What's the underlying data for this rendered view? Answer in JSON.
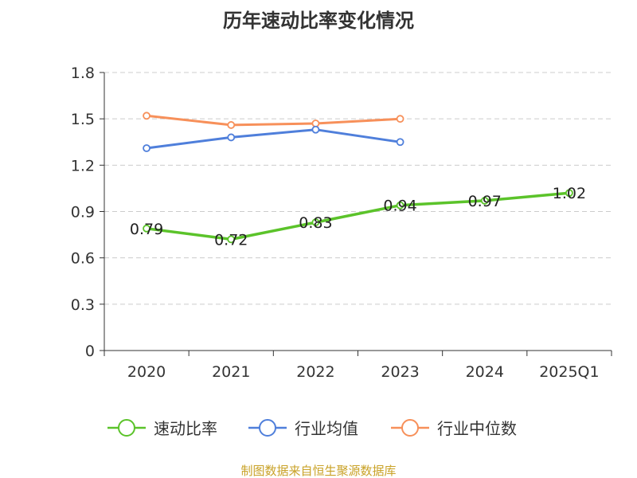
{
  "chart_data": {
    "type": "line",
    "title": "历年速动比率变化情况",
    "xlabel": "",
    "ylabel": "",
    "categories": [
      "2020",
      "2021",
      "2022",
      "2023",
      "2024",
      "2025Q1"
    ],
    "y_ticks": [
      "0",
      "0.3",
      "0.6",
      "0.9",
      "1.2",
      "1.5",
      "1.8"
    ],
    "ylim": [
      0,
      1.8
    ],
    "grid": true,
    "legend_position": "bottom",
    "series": [
      {
        "name": "速动比率",
        "color": "#5bc32a",
        "values": [
          0.79,
          0.72,
          0.83,
          0.94,
          0.97,
          1.02
        ],
        "labels": [
          "0.79",
          "0.72",
          "0.83",
          "0.94",
          "0.97",
          "1.02"
        ]
      },
      {
        "name": "行业均值",
        "color": "#4f7fdb",
        "values": [
          1.31,
          1.38,
          1.43,
          1.35,
          null,
          null
        ]
      },
      {
        "name": "行业中位数",
        "color": "#f7905a",
        "values": [
          1.52,
          1.46,
          1.47,
          1.5,
          null,
          null
        ]
      }
    ]
  },
  "source_note": "制图数据来自恒生聚源数据库"
}
